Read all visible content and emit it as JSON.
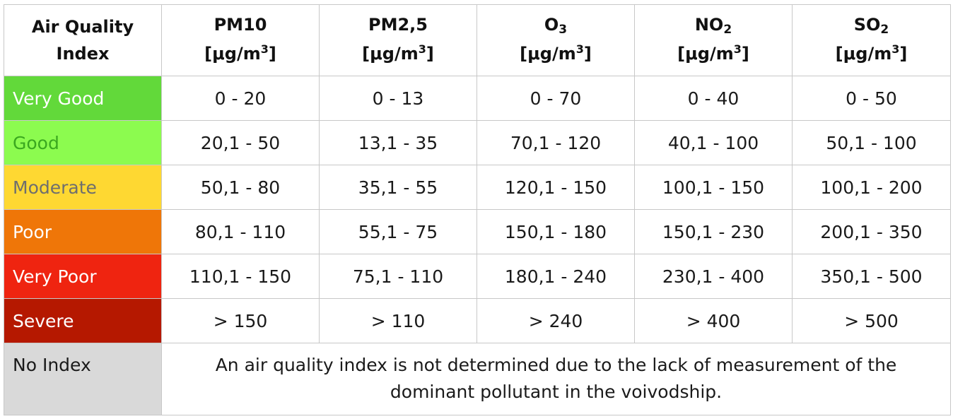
{
  "header": {
    "index_label_line1": "Air Quality",
    "index_label_line2": "Index",
    "unit_open": "[μg/m",
    "unit_exp": "3",
    "unit_close": "]",
    "pollutants": [
      {
        "base": "PM10",
        "sub": ""
      },
      {
        "base": "PM2,5",
        "sub": ""
      },
      {
        "base": "O",
        "sub": "3"
      },
      {
        "base": "NO",
        "sub": "2"
      },
      {
        "base": "SO",
        "sub": "2"
      }
    ]
  },
  "rows": [
    {
      "label": "Very Good",
      "bg": "#62d93a",
      "fg": "#ffffff",
      "values": [
        "0 - 20",
        "0 - 13",
        "0 - 70",
        "0 - 40",
        "0 - 50"
      ]
    },
    {
      "label": "Good",
      "bg": "#8cfb4f",
      "fg": "#3aa81f",
      "values": [
        "20,1 - 50",
        "13,1 - 35",
        "70,1 - 120",
        "40,1 - 100",
        "50,1 - 100"
      ]
    },
    {
      "label": "Moderate",
      "bg": "#fed832",
      "fg": "#6e6e6e",
      "values": [
        "50,1 - 80",
        "35,1 - 55",
        "120,1 - 150",
        "100,1 - 150",
        "100,1 - 200"
      ]
    },
    {
      "label": "Poor",
      "bg": "#ef7608",
      "fg": "#ffffff",
      "values": [
        "80,1 - 110",
        "55,1 - 75",
        "150,1 - 180",
        "150,1 - 230",
        "200,1 - 350"
      ]
    },
    {
      "label": "Very Poor",
      "bg": "#ef2410",
      "fg": "#ffffff",
      "values": [
        "110,1 - 150",
        "75,1 - 110",
        "180,1 - 240",
        "230,1 - 400",
        "350,1 - 500"
      ]
    },
    {
      "label": "Severe",
      "bg": "#b51800",
      "fg": "#ffffff",
      "values": [
        "> 150",
        "> 110",
        "> 240",
        "> 400",
        "> 500"
      ]
    }
  ],
  "no_index": {
    "label": "No Index",
    "bg": "#d9d9d9",
    "fg": "#1a1a1a",
    "note": "An air quality index is not determined due to the lack of measurement of the dominant pollutant in the voivodship."
  }
}
